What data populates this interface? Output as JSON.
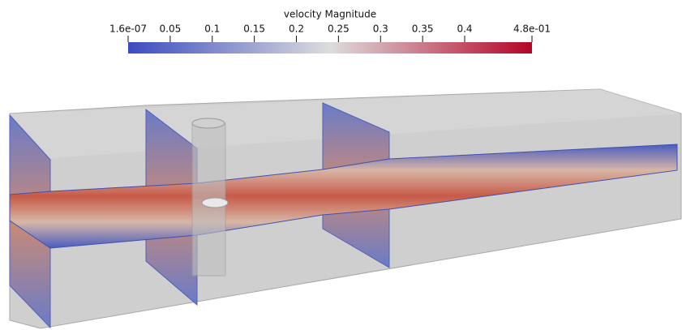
{
  "colorbar": {
    "title": "velocity Magnitude",
    "range": [
      1.6e-07,
      0.48
    ],
    "ticks": [
      {
        "value": 1.6e-07,
        "label": "1.6e-07"
      },
      0.05,
      0.1,
      0.15,
      0.2,
      0.25,
      0.3,
      0.35,
      0.4,
      {
        "value": 0.48,
        "label": "4.8e-01"
      }
    ]
  }
}
